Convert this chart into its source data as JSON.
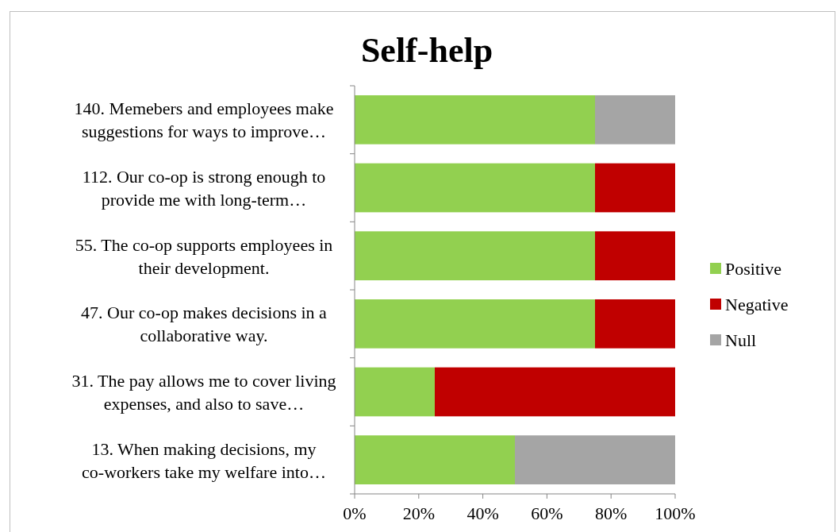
{
  "chart_data": {
    "type": "bar",
    "title": "Self-help",
    "orientation": "horizontal",
    "stacked": true,
    "legend": "right",
    "categories": [
      "140. Memebers and employees make suggestions for ways to improve…",
      "112. Our co-op is strong enough to provide me with long-term…",
      "55. The co-op supports employees in their development.",
      "47. Our co-op makes decisions in a collaborative way.",
      "31. The pay allows me  to cover living expenses, and also to save…",
      "13. When making decisions, my co-workers take my welfare into…"
    ],
    "series": [
      {
        "name": "Positive",
        "color": "#92d050",
        "values": [
          75,
          75,
          75,
          75,
          25,
          50
        ]
      },
      {
        "name": "Negative",
        "color": "#c00000",
        "values": [
          0,
          25,
          25,
          25,
          75,
          0
        ]
      },
      {
        "name": "Null",
        "color": "#a5a5a5",
        "values": [
          25,
          0,
          0,
          0,
          0,
          50
        ]
      }
    ],
    "xlim": [
      0,
      100
    ],
    "xticks": [
      {
        "value": 0,
        "label": "0%"
      },
      {
        "value": 20,
        "label": "20%"
      },
      {
        "value": 40,
        "label": "40%"
      },
      {
        "value": 60,
        "label": "60%"
      },
      {
        "value": 80,
        "label": "80%"
      },
      {
        "value": 100,
        "label": "100%"
      }
    ]
  }
}
